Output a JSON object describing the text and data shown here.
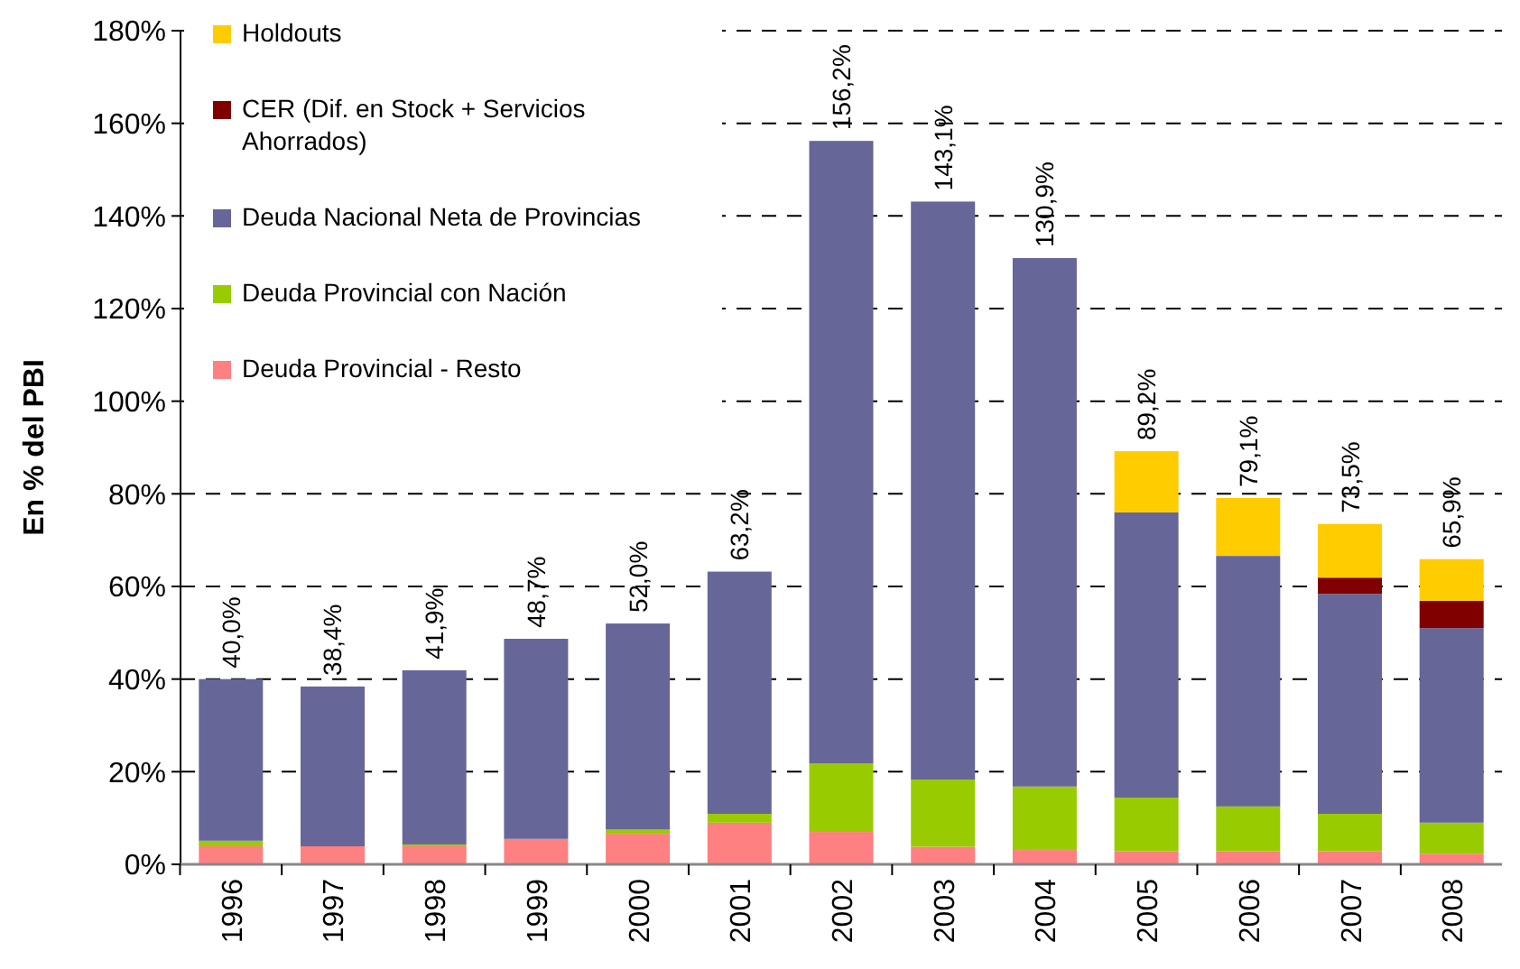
{
  "chart_data": {
    "type": "bar",
    "stacked": true,
    "ylabel": "En % del PBI",
    "categories": [
      "1996",
      "1997",
      "1998",
      "1999",
      "2000",
      "2001",
      "2002",
      "2003",
      "2004",
      "2005",
      "2006",
      "2007",
      "2008"
    ],
    "series": [
      {
        "name": "Deuda Provincial - Resto",
        "color": "#ff8080",
        "values": [
          3.9,
          3.9,
          3.9,
          5.5,
          6.6,
          9.0,
          7.0,
          3.8,
          3.1,
          2.8,
          2.8,
          2.8,
          2.3
        ]
      },
      {
        "name": "Deuda Provincial con Nación",
        "color": "#99cc00",
        "values": [
          1.2,
          0,
          0.4,
          0,
          0.9,
          1.9,
          14.8,
          14.5,
          13.7,
          11.6,
          9.7,
          8.1,
          6.7
        ]
      },
      {
        "name": "Deuda Nacional Neta de Provincias",
        "color": "#666699",
        "values": [
          34.9,
          34.5,
          37.6,
          43.2,
          44.5,
          52.3,
          134.4,
          124.8,
          114.1,
          61.6,
          54.1,
          47.5,
          42.0
        ]
      },
      {
        "name": "CER (Dif. en Stock + Servicios Ahorrados)",
        "color": "#800000",
        "values": [
          0,
          0,
          0,
          0,
          0,
          0,
          0,
          0,
          0,
          0,
          0,
          3.5,
          5.9
        ]
      },
      {
        "name": "Holdouts",
        "color": "#ffcc00",
        "values": [
          0,
          0,
          0,
          0,
          0,
          0,
          0,
          0,
          0,
          13.2,
          12.5,
          11.6,
          9.0
        ]
      }
    ],
    "totals": [
      "40,0%",
      "38,4%",
      "41,9%",
      "48,7%",
      "52,0%",
      "63,2%",
      "156,2%",
      "143,1%",
      "130,9%",
      "89,2%",
      "79,1%",
      "73,5%",
      "65,9%"
    ],
    "ylim": [
      0,
      180
    ],
    "yticks": [
      {
        "value": 0,
        "label": "0%"
      },
      {
        "value": 20,
        "label": "20%"
      },
      {
        "value": 40,
        "label": "40%"
      },
      {
        "value": 60,
        "label": "60%"
      },
      {
        "value": 80,
        "label": "80%"
      },
      {
        "value": 100,
        "label": "100%"
      },
      {
        "value": 120,
        "label": "120%"
      },
      {
        "value": 140,
        "label": "140%"
      },
      {
        "value": 160,
        "label": "160%"
      },
      {
        "value": 180,
        "label": "180%"
      }
    ],
    "grid": "y",
    "legend": "top left"
  }
}
